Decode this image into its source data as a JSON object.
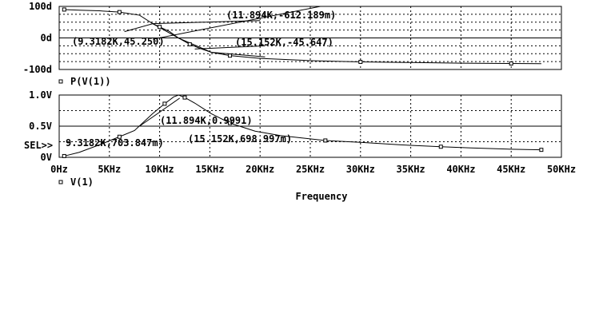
{
  "chart_data": [
    {
      "type": "line",
      "x_unit": "Hz",
      "xlim": [
        0,
        50000
      ],
      "ylim": [
        -100,
        100
      ],
      "y_ticks": [
        "100d",
        "0d",
        "-100d"
      ],
      "y_tick_values": [
        100,
        0,
        -100
      ],
      "legend": "P(V(1))",
      "grid": true,
      "series": [
        {
          "name": "P(V(1))",
          "x": [
            500,
            2000,
            4000,
            6000,
            8000,
            9318,
            10000,
            11000,
            11894,
            13000,
            14000,
            15152,
            17000,
            20000,
            25000,
            30000,
            35000,
            40000,
            45000,
            48000
          ],
          "y": [
            90,
            88,
            86,
            82,
            72,
            45.25,
            35,
            20,
            -0.6,
            -20,
            -33,
            -45.6,
            -56,
            -65,
            -72,
            -76,
            -78,
            -80,
            -81,
            -81.5
          ]
        }
      ],
      "secondary": {
        "x": [
          6500,
          9318,
          11894,
          15152,
          20500
        ],
        "y": [
          20,
          45.25,
          -0.61,
          -45.6,
          -60
        ]
      },
      "cursor_lines": [
        {
          "x": [
            9318,
            20000
          ],
          "y": [
            45.25,
            55
          ]
        },
        {
          "x": [
            9318,
            26000
          ],
          "y": [
            -4,
            100
          ]
        },
        {
          "x": [
            13500,
            20500
          ],
          "y": [
            -35,
            -25
          ]
        }
      ],
      "annotations": [
        {
          "text": "(11.894K,-612.189m)",
          "x": 11894,
          "y": -0.612
        },
        {
          "text": "(9.3182K,45.250)",
          "x": 9318,
          "y": 45.25
        },
        {
          "text": "(15.152K,-45.647)",
          "x": 15152,
          "y": -45.647
        }
      ]
    },
    {
      "type": "line",
      "x_unit": "Hz",
      "xlim": [
        0,
        50000
      ],
      "ylim": [
        0,
        1
      ],
      "y_ticks": [
        "1.0V",
        "0.5V",
        "0V"
      ],
      "y_tick_values": [
        1.0,
        0.5,
        0
      ],
      "x_ticks": [
        "0Hz",
        "5KHz",
        "10KHz",
        "15KHz",
        "20KHz",
        "25KHz",
        "30KHz",
        "35KHz",
        "40KHz",
        "45KHz",
        "50KHz"
      ],
      "x_tick_values": [
        0,
        5000,
        10000,
        15000,
        20000,
        25000,
        30000,
        35000,
        40000,
        45000,
        50000
      ],
      "xlabel": "Frequency",
      "legend": "V(1)",
      "sel_marker": "SEL>>",
      "grid": true,
      "series": [
        {
          "name": "V(1)",
          "x": [
            500,
            2000,
            4000,
            6000,
            7500,
            9318,
            10500,
            11400,
            11894,
            12500,
            13500,
            15152,
            17000,
            19500,
            22000,
            26500,
            30000,
            34000,
            38000,
            41000,
            45000,
            48000
          ],
          "y": [
            0.02,
            0.08,
            0.2,
            0.33,
            0.43,
            0.704,
            0.86,
            0.97,
            0.999,
            0.96,
            0.87,
            0.699,
            0.55,
            0.42,
            0.35,
            0.27,
            0.24,
            0.2,
            0.17,
            0.15,
            0.13,
            0.12
          ]
        }
      ],
      "cursor_lines": [
        {
          "x": [
            8000,
            12000
          ],
          "y": [
            0.5,
            0.95
          ]
        }
      ],
      "annotations": [
        {
          "text": "(11.894K,0.9991)",
          "x": 11894,
          "y": 0.9991
        },
        {
          "text": "(15.152K,698.997m)",
          "x": 15152,
          "y": 0.699
        },
        {
          "text": "9.3182K,703.847m)",
          "x": 9318,
          "y": 0.7038
        }
      ]
    }
  ]
}
